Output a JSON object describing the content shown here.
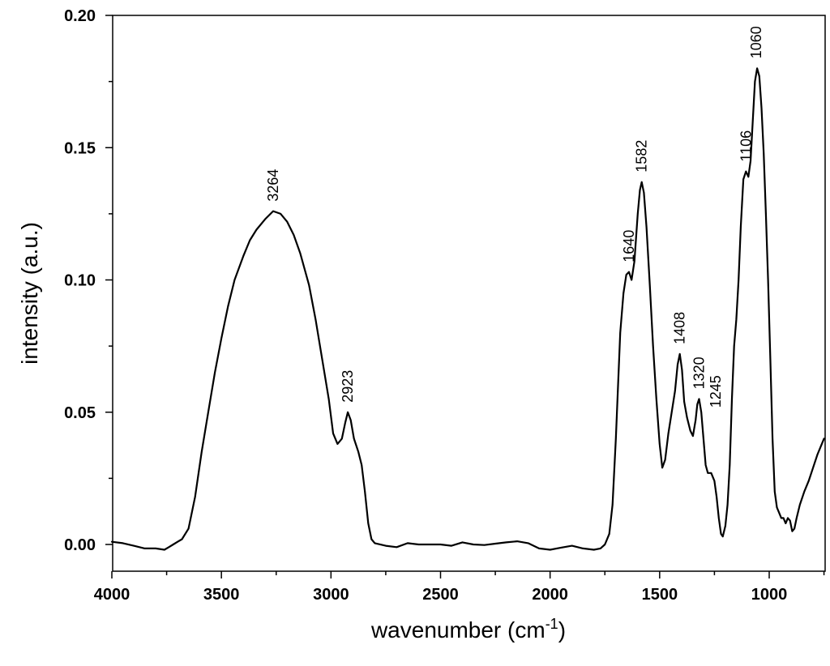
{
  "chart_data": {
    "type": "line",
    "xlabel": "wavenumber (cm",
    "xlabel_sup": "-1",
    "xlabel_close": ")",
    "ylabel": "intensity (a.u.)",
    "xlim": [
      4000,
      750
    ],
    "ylim": [
      -0.01,
      0.2
    ],
    "x_reversed": true,
    "grid": false,
    "xticks": [
      4000,
      3500,
      3000,
      2500,
      2000,
      1500,
      1000
    ],
    "xtick_labels": [
      "4000",
      "3500",
      "3000",
      "2500",
      "2000",
      "1500",
      "1000"
    ],
    "yticks": [
      0.0,
      0.05,
      0.1,
      0.15,
      0.2
    ],
    "ytick_labels": [
      "0.00",
      "0.05",
      "0.10",
      "0.15",
      "0.20"
    ],
    "annotations": [
      {
        "text": "3264",
        "x": 3264,
        "y": 0.126
      },
      {
        "text": "2923",
        "x": 2923,
        "y": 0.05
      },
      {
        "text": "1640",
        "x": 1640,
        "y": 0.103
      },
      {
        "text": "1582",
        "x": 1582,
        "y": 0.137
      },
      {
        "text": "1408",
        "x": 1408,
        "y": 0.072
      },
      {
        "text": "1320",
        "x": 1320,
        "y": 0.055
      },
      {
        "text": "1245",
        "x": 1245,
        "y": 0.026
      },
      {
        "text": "1106",
        "x": 1106,
        "y": 0.141
      },
      {
        "text": "1060",
        "x": 1060,
        "y": 0.18
      }
    ],
    "series": [
      {
        "points": [
          [
            4000,
            0.001
          ],
          [
            3950,
            0.0005
          ],
          [
            3900,
            -0.0005
          ],
          [
            3850,
            -0.0015
          ],
          [
            3800,
            -0.0015
          ],
          [
            3760,
            -0.002
          ],
          [
            3740,
            -0.001
          ],
          [
            3720,
            0.0
          ],
          [
            3700,
            0.001
          ],
          [
            3680,
            0.002
          ],
          [
            3650,
            0.006
          ],
          [
            3620,
            0.018
          ],
          [
            3590,
            0.035
          ],
          [
            3560,
            0.05
          ],
          [
            3530,
            0.065
          ],
          [
            3500,
            0.078
          ],
          [
            3470,
            0.09
          ],
          [
            3440,
            0.1
          ],
          [
            3400,
            0.109
          ],
          [
            3370,
            0.115
          ],
          [
            3340,
            0.119
          ],
          [
            3300,
            0.123
          ],
          [
            3264,
            0.126
          ],
          [
            3230,
            0.125
          ],
          [
            3200,
            0.122
          ],
          [
            3170,
            0.117
          ],
          [
            3140,
            0.11
          ],
          [
            3100,
            0.098
          ],
          [
            3070,
            0.085
          ],
          [
            3040,
            0.07
          ],
          [
            3010,
            0.055
          ],
          [
            2990,
            0.042
          ],
          [
            2970,
            0.038
          ],
          [
            2950,
            0.04
          ],
          [
            2935,
            0.046
          ],
          [
            2923,
            0.05
          ],
          [
            2910,
            0.047
          ],
          [
            2895,
            0.04
          ],
          [
            2875,
            0.035
          ],
          [
            2860,
            0.03
          ],
          [
            2845,
            0.02
          ],
          [
            2830,
            0.008
          ],
          [
            2815,
            0.002
          ],
          [
            2800,
            0.0005
          ],
          [
            2750,
            -0.0005
          ],
          [
            2700,
            -0.001
          ],
          [
            2650,
            0.0005
          ],
          [
            2600,
            0.0
          ],
          [
            2500,
            0.0
          ],
          [
            2450,
            -0.0005
          ],
          [
            2400,
            0.0008
          ],
          [
            2350,
            0.0
          ],
          [
            2300,
            -0.0002
          ],
          [
            2250,
            0.0003
          ],
          [
            2200,
            0.0008
          ],
          [
            2150,
            0.0012
          ],
          [
            2100,
            0.0005
          ],
          [
            2050,
            -0.0015
          ],
          [
            2000,
            -0.002
          ],
          [
            1950,
            -0.0012
          ],
          [
            1900,
            -0.0005
          ],
          [
            1850,
            -0.0015
          ],
          [
            1800,
            -0.002
          ],
          [
            1770,
            -0.0015
          ],
          [
            1750,
            0.0
          ],
          [
            1730,
            0.004
          ],
          [
            1715,
            0.015
          ],
          [
            1700,
            0.04
          ],
          [
            1690,
            0.06
          ],
          [
            1680,
            0.08
          ],
          [
            1665,
            0.095
          ],
          [
            1652,
            0.102
          ],
          [
            1640,
            0.103
          ],
          [
            1628,
            0.1
          ],
          [
            1615,
            0.107
          ],
          [
            1600,
            0.125
          ],
          [
            1590,
            0.134
          ],
          [
            1582,
            0.137
          ],
          [
            1572,
            0.133
          ],
          [
            1560,
            0.12
          ],
          [
            1545,
            0.098
          ],
          [
            1530,
            0.075
          ],
          [
            1515,
            0.055
          ],
          [
            1500,
            0.038
          ],
          [
            1488,
            0.029
          ],
          [
            1475,
            0.032
          ],
          [
            1460,
            0.042
          ],
          [
            1445,
            0.05
          ],
          [
            1430,
            0.058
          ],
          [
            1418,
            0.068
          ],
          [
            1408,
            0.072
          ],
          [
            1398,
            0.066
          ],
          [
            1388,
            0.054
          ],
          [
            1375,
            0.048
          ],
          [
            1360,
            0.043
          ],
          [
            1348,
            0.041
          ],
          [
            1336,
            0.047
          ],
          [
            1328,
            0.053
          ],
          [
            1320,
            0.055
          ],
          [
            1310,
            0.05
          ],
          [
            1300,
            0.04
          ],
          [
            1290,
            0.03
          ],
          [
            1280,
            0.027
          ],
          [
            1265,
            0.027
          ],
          [
            1250,
            0.024
          ],
          [
            1240,
            0.018
          ],
          [
            1230,
            0.01
          ],
          [
            1220,
            0.004
          ],
          [
            1212,
            0.003
          ],
          [
            1200,
            0.007
          ],
          [
            1190,
            0.015
          ],
          [
            1180,
            0.03
          ],
          [
            1170,
            0.055
          ],
          [
            1160,
            0.075
          ],
          [
            1150,
            0.085
          ],
          [
            1140,
            0.1
          ],
          [
            1130,
            0.12
          ],
          [
            1118,
            0.138
          ],
          [
            1106,
            0.141
          ],
          [
            1095,
            0.139
          ],
          [
            1085,
            0.145
          ],
          [
            1075,
            0.16
          ],
          [
            1065,
            0.175
          ],
          [
            1055,
            0.18
          ],
          [
            1045,
            0.177
          ],
          [
            1035,
            0.165
          ],
          [
            1025,
            0.148
          ],
          [
            1015,
            0.125
          ],
          [
            1005,
            0.1
          ],
          [
            995,
            0.07
          ],
          [
            985,
            0.04
          ],
          [
            975,
            0.02
          ],
          [
            965,
            0.014
          ],
          [
            955,
            0.012
          ],
          [
            945,
            0.01
          ],
          [
            935,
            0.01
          ],
          [
            925,
            0.008
          ],
          [
            915,
            0.01
          ],
          [
            905,
            0.009
          ],
          [
            895,
            0.005
          ],
          [
            885,
            0.006
          ],
          [
            875,
            0.01
          ],
          [
            860,
            0.015
          ],
          [
            840,
            0.02
          ],
          [
            820,
            0.024
          ],
          [
            800,
            0.029
          ],
          [
            780,
            0.034
          ],
          [
            760,
            0.038
          ],
          [
            750,
            0.04
          ]
        ]
      }
    ]
  }
}
